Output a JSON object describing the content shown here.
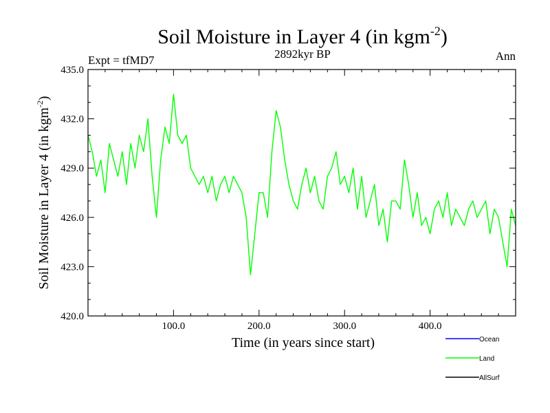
{
  "chart_data": {
    "type": "line",
    "title_main": "Soil Moisture in Layer 4 (in kgm",
    "title_sup": "-2",
    "title_close": ")",
    "subtitle": "2892kyr BP",
    "left_label": "Expt = tfMD7",
    "right_label": "Ann",
    "xlabel": "Time (in years since start)",
    "ylabel_main": "Soil Moisture in Layer 4 (in kgm",
    "ylabel_sup": "-2",
    "ylabel_close": ")",
    "xlim": [
      0,
      500
    ],
    "ylim": [
      420,
      435
    ],
    "xticks": [
      100,
      200,
      300,
      400
    ],
    "xtick_labels": [
      "100.0",
      "200.0",
      "300.0",
      "400.0"
    ],
    "yticks": [
      420,
      423,
      426,
      429,
      432,
      435
    ],
    "ytick_labels": [
      "420.0",
      "423.0",
      "426.0",
      "429.0",
      "432.0",
      "435.0"
    ],
    "legend": [
      {
        "name": "Ocean",
        "color": "#0000ff"
      },
      {
        "name": "Land",
        "color": "#00ff00"
      },
      {
        "name": "AllSurf",
        "color": "#000000"
      }
    ],
    "series": [
      {
        "name": "Land",
        "color": "#00ff00",
        "x": [
          0,
          5,
          10,
          15,
          20,
          25,
          30,
          35,
          40,
          45,
          50,
          55,
          60,
          65,
          70,
          75,
          80,
          85,
          90,
          95,
          100,
          105,
          110,
          115,
          120,
          125,
          130,
          135,
          140,
          145,
          150,
          155,
          160,
          165,
          170,
          175,
          180,
          185,
          190,
          195,
          200,
          205,
          210,
          215,
          220,
          225,
          230,
          235,
          240,
          245,
          250,
          255,
          260,
          265,
          270,
          275,
          280,
          285,
          290,
          295,
          300,
          305,
          310,
          315,
          320,
          325,
          330,
          335,
          340,
          345,
          350,
          355,
          360,
          365,
          370,
          375,
          380,
          385,
          390,
          395,
          400,
          405,
          410,
          415,
          420,
          425,
          430,
          435,
          440,
          445,
          450,
          455,
          460,
          465,
          470,
          475,
          480,
          485,
          490,
          495,
          500
        ],
        "values": [
          431.0,
          430.0,
          428.5,
          429.5,
          427.5,
          430.5,
          429.5,
          428.5,
          430.0,
          428.0,
          430.5,
          429.0,
          431.0,
          430.0,
          432.0,
          428.5,
          426.0,
          429.5,
          431.5,
          430.5,
          433.5,
          431.0,
          430.5,
          431.0,
          429.0,
          428.5,
          428.0,
          428.5,
          427.5,
          428.5,
          427.0,
          428.0,
          428.5,
          427.5,
          428.5,
          428.0,
          427.5,
          426.0,
          422.5,
          425.0,
          427.5,
          427.5,
          426.0,
          430.0,
          432.5,
          431.5,
          429.5,
          428.0,
          427.0,
          426.5,
          428.0,
          429.0,
          427.5,
          428.5,
          427.0,
          426.5,
          428.5,
          429.0,
          430.0,
          428.0,
          428.5,
          427.5,
          429.0,
          426.5,
          428.5,
          426.0,
          427.0,
          428.0,
          425.5,
          426.5,
          424.5,
          427.0,
          427.0,
          426.5,
          429.5,
          428.0,
          426.0,
          427.5,
          425.5,
          426.0,
          425.0,
          426.5,
          427.0,
          426.0,
          427.5,
          425.5,
          426.5,
          426.0,
          425.5,
          426.5,
          427.0,
          426.0,
          426.5,
          427.0,
          425.0,
          426.5,
          426.0,
          424.5,
          423.0,
          426.5,
          425.5
        ]
      }
    ]
  }
}
